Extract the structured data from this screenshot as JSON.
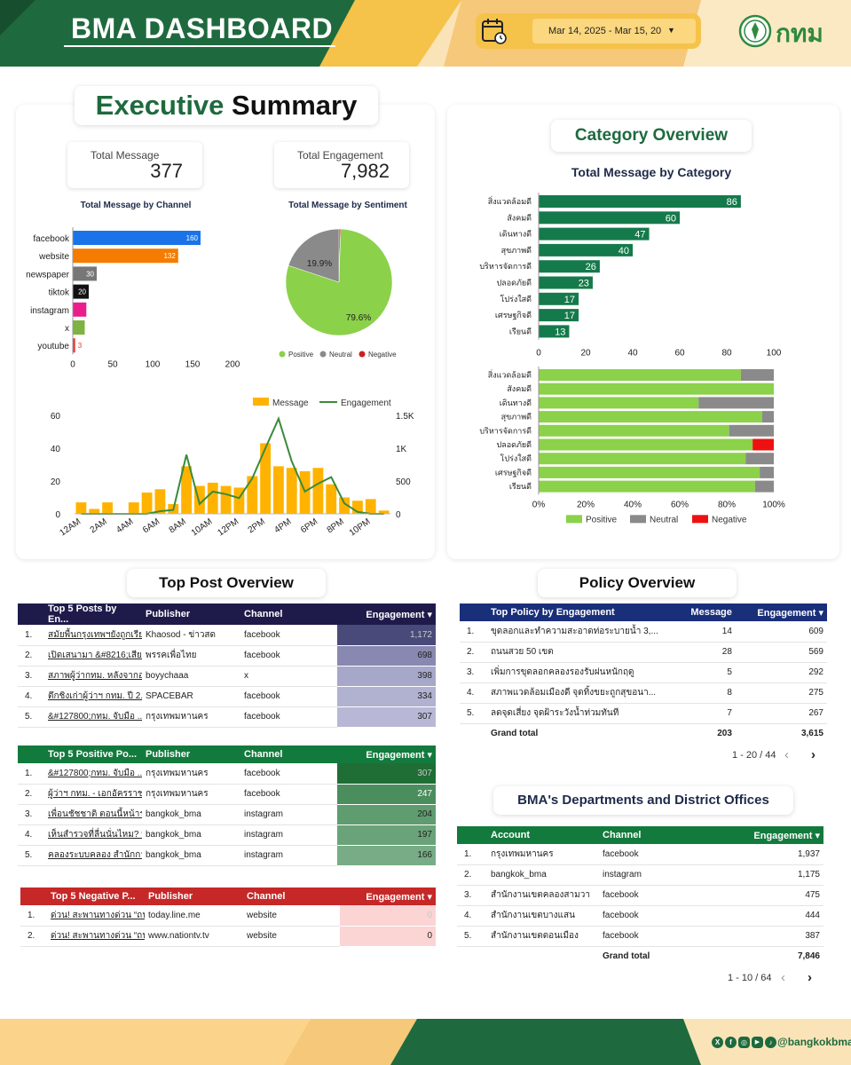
{
  "header": {
    "title": "BMA DASHBOARD",
    "date_range": "Mar 14, 2025 - Mar 15, 20",
    "logo_text": "กทม",
    "colors": {
      "green": "#1e6a3e",
      "gold": "#f5c24a",
      "cream": "#fbe3b8"
    }
  },
  "executive": {
    "title_a": "Executive",
    "title_b": "Summary",
    "total_message_label": "Total Message",
    "total_message": "377",
    "total_engagement_label": "Total Engagement",
    "total_engagement": "7,982"
  },
  "channel_chart": {
    "title": "Total Message by Channel",
    "ticks": [
      "0",
      "50",
      "100",
      "150",
      "200"
    ]
  },
  "sentiment_chart": {
    "title": "Total Message by Sentiment",
    "pct_neutral": "19.9%",
    "pct_positive": "79.6%",
    "legend": [
      "Positive",
      "Neutral",
      "Negative"
    ]
  },
  "timeline": {
    "legend_message": "Message",
    "legend_engagement": "Engagement",
    "left_ticks": [
      "0",
      "20",
      "40",
      "60"
    ],
    "right_ticks": [
      "0",
      "500",
      "1K",
      "1.5K"
    ],
    "x_ticks": [
      "12AM",
      "2AM",
      "4AM",
      "6AM",
      "8AM",
      "10AM",
      "12PM",
      "2PM",
      "4PM",
      "6PM",
      "8PM",
      "10PM"
    ]
  },
  "category": {
    "title": "Category Overview",
    "chart_title": "Total Message by Category",
    "x_ticks": [
      "0",
      "20",
      "40",
      "60",
      "80",
      "100"
    ],
    "pct_ticks": [
      "0%",
      "20%",
      "40%",
      "60%",
      "80%",
      "100%"
    ],
    "legend": [
      "Positive",
      "Neutral",
      "Negative"
    ]
  },
  "chart_data": [
    {
      "type": "bar",
      "title": "Total Message by Channel",
      "categories": [
        "facebook",
        "website",
        "newspaper",
        "tiktok",
        "instagram",
        "x",
        "youtube"
      ],
      "values": [
        160,
        132,
        30,
        20,
        17,
        15,
        3
      ],
      "colors": [
        "#1a73e8",
        "#f57c00",
        "#777777",
        "#111111",
        "#e91e8c",
        "#7cb342",
        "#e53935"
      ],
      "xlim": [
        0,
        200
      ]
    },
    {
      "type": "pie",
      "title": "Total Message by Sentiment",
      "categories": [
        "Positive",
        "Neutral",
        "Negative"
      ],
      "values": [
        79.6,
        19.9,
        0.5
      ],
      "colors": [
        "#8bd14a",
        "#8a8a8a",
        "#cc2020"
      ]
    },
    {
      "type": "bar",
      "categories": [
        "12AM",
        "1AM",
        "2AM",
        "3AM",
        "4AM",
        "5AM",
        "6AM",
        "7AM",
        "8AM",
        "9AM",
        "10AM",
        "11AM",
        "12PM",
        "1PM",
        "2PM",
        "3PM",
        "4PM",
        "5PM",
        "6PM",
        "7PM",
        "8PM",
        "9PM",
        "10PM",
        "11PM"
      ],
      "series": [
        {
          "name": "Message",
          "values": [
            7,
            3,
            7,
            0,
            7,
            13,
            15,
            6,
            29,
            17,
            19,
            17,
            16,
            23,
            43,
            29,
            28,
            26,
            28,
            18,
            10,
            8,
            9,
            2
          ]
        },
        {
          "name": "Engagement",
          "values": [
            0,
            0,
            0,
            0,
            0,
            0,
            40,
            60,
            900,
            150,
            340,
            300,
            240,
            540,
            1000,
            1450,
            800,
            340,
            460,
            560,
            160,
            30,
            0,
            0
          ]
        }
      ],
      "ylim": [
        0,
        60
      ],
      "y2lim": [
        0,
        1500
      ]
    },
    {
      "type": "bar",
      "title": "Total Message by Category",
      "categories": [
        "สิ่งแวดล้อมดี",
        "สังคมดี",
        "เดินทางดี",
        "สุขภาพดี",
        "บริหารจัดการดี",
        "ปลอดภัยดี",
        "โปร่งใสดี",
        "เศรษฐกิจดี",
        "เรียนดี"
      ],
      "values": [
        86,
        60,
        47,
        40,
        26,
        23,
        17,
        17,
        13
      ],
      "xlim": [
        0,
        100
      ]
    },
    {
      "type": "bar",
      "categories": [
        "สิ่งแวดล้อมดี",
        "สังคมดี",
        "เดินทางดี",
        "สุขภาพดี",
        "บริหารจัดการดี",
        "ปลอดภัยดี",
        "โปร่งใสดี",
        "เศรษฐกิจดี",
        "เรียนดี"
      ],
      "series": [
        {
          "name": "Positive",
          "values": [
            86,
            100,
            68,
            95,
            81,
            91,
            88,
            94,
            92
          ]
        },
        {
          "name": "Neutral",
          "values": [
            14,
            0,
            32,
            5,
            19,
            0,
            12,
            6,
            8
          ]
        },
        {
          "name": "Negative",
          "values": [
            0,
            0,
            0,
            0,
            0,
            9,
            0,
            0,
            0
          ]
        }
      ],
      "xlim": [
        0,
        100
      ]
    }
  ],
  "top_posts": {
    "title": "Top Post Overview",
    "all": {
      "headers": [
        "Top 5 Posts by En...",
        "Publisher",
        "Channel",
        "Engagement ▾"
      ],
      "rows": [
        [
          "1.",
          "สมัยพื้นกรุงเทพฯยังถูกเรียก...",
          "Khaosod - ข่าวสด",
          "facebook",
          "1,172"
        ],
        [
          "2.",
          "เปิดเสนามา &#8216;เสีย...",
          "พรรคเพื่อไทย",
          "facebook",
          "698"
        ],
        [
          "3.",
          "สภาพผู้ว่ากทม. หลังจากอง...",
          "boyychaaa",
          "x",
          "398"
        ],
        [
          "4.",
          "ตึกชิงเก่าผู้ว่าฯ กทม. ปี 2...",
          "SPACEBAR",
          "facebook",
          "334"
        ],
        [
          "5.",
          "&#127800;กทม. จับมือ ...",
          "กรุงเทพมหานคร",
          "facebook",
          "307"
        ]
      ]
    },
    "positive": {
      "headers": [
        "Top 5 Positive Po...",
        "Publisher",
        "Channel",
        "Engagement ▾"
      ],
      "rows": [
        [
          "1.",
          "&#127800;กทม. จับมือ ...",
          "กรุงเทพมหานคร",
          "facebook",
          "307"
        ],
        [
          "2.",
          "ผู้ว่าฯ กทม. - เอกอัครราชทู...",
          "กรุงเทพมหานคร",
          "facebook",
          "247"
        ],
        [
          "3.",
          "เพื่อนชัชชาติ ตอนนี้หน้ารถ...",
          "bangkok_bma",
          "instagram",
          "204"
        ],
        [
          "4.",
          "เห็นสำรวจที่ลื่นนั่นไหม? ที่...",
          "bangkok_bma",
          "instagram",
          "197"
        ],
        [
          "5.",
          "คลองระบบคลอง สำนักการร...",
          "bangkok_bma",
          "instagram",
          "166"
        ]
      ]
    },
    "negative": {
      "headers": [
        "Top 5 Negative P...",
        "Publisher",
        "Channel",
        "Engagement ▾"
      ],
      "rows": [
        [
          "1.",
          "ด่วน! สะพานทางด่วน “ถน...",
          "today.line.me",
          "website",
          "0"
        ],
        [
          "2.",
          "ด่วน! สะพานทางด่วน “ถน...",
          "www.nationtv.tv",
          "website",
          "0"
        ]
      ]
    }
  },
  "policy": {
    "title": "Policy Overview",
    "headers": [
      "Top Policy by Engagement",
      "Message",
      "Engagement ▾"
    ],
    "rows": [
      [
        "1.",
        "ขุดลอกและทำความสะอาดท่อระบายน้ำ 3,...",
        "14",
        "609"
      ],
      [
        "2.",
        "ถนนสวย 50 เขต",
        "28",
        "569"
      ],
      [
        "3.",
        "เพิ่มการขุดลอกคลองรองรับฝนหนักฤดู",
        "5",
        "292"
      ],
      [
        "4.",
        "สภาพแวดล้อมเมืองดี จุดทิ้งขยะถูกสุขอนา...",
        "8",
        "275"
      ],
      [
        "5.",
        "ลดจุดเสี่ยง จุดฝ้าระวังน้ำท่วมทันที",
        "7",
        "267"
      ]
    ],
    "grand_label": "Grand total",
    "grand_message": "203",
    "grand_engagement": "3,615",
    "pager": "1 - 20 / 44"
  },
  "departments": {
    "title": "BMA's Departments and District Offices",
    "headers": [
      "Account",
      "Channel",
      "Engagement ▾"
    ],
    "rows": [
      [
        "1.",
        "กรุงเทพมหานคร",
        "facebook",
        "1,937"
      ],
      [
        "2.",
        "bangkok_bma",
        "instagram",
        "1,175"
      ],
      [
        "3.",
        "สำนักงานเขตคลองสามวา",
        "facebook",
        "475"
      ],
      [
        "4.",
        "สำนักงานเขตบางแสน",
        "facebook",
        "444"
      ],
      [
        "5.",
        "สำนักงานเขตดอนเมือง",
        "facebook",
        "387"
      ]
    ],
    "grand_label": "Grand total",
    "grand_value": "7,846",
    "pager": "1 - 10 / 64"
  },
  "footer": {
    "handle": "@bangkokbma"
  }
}
